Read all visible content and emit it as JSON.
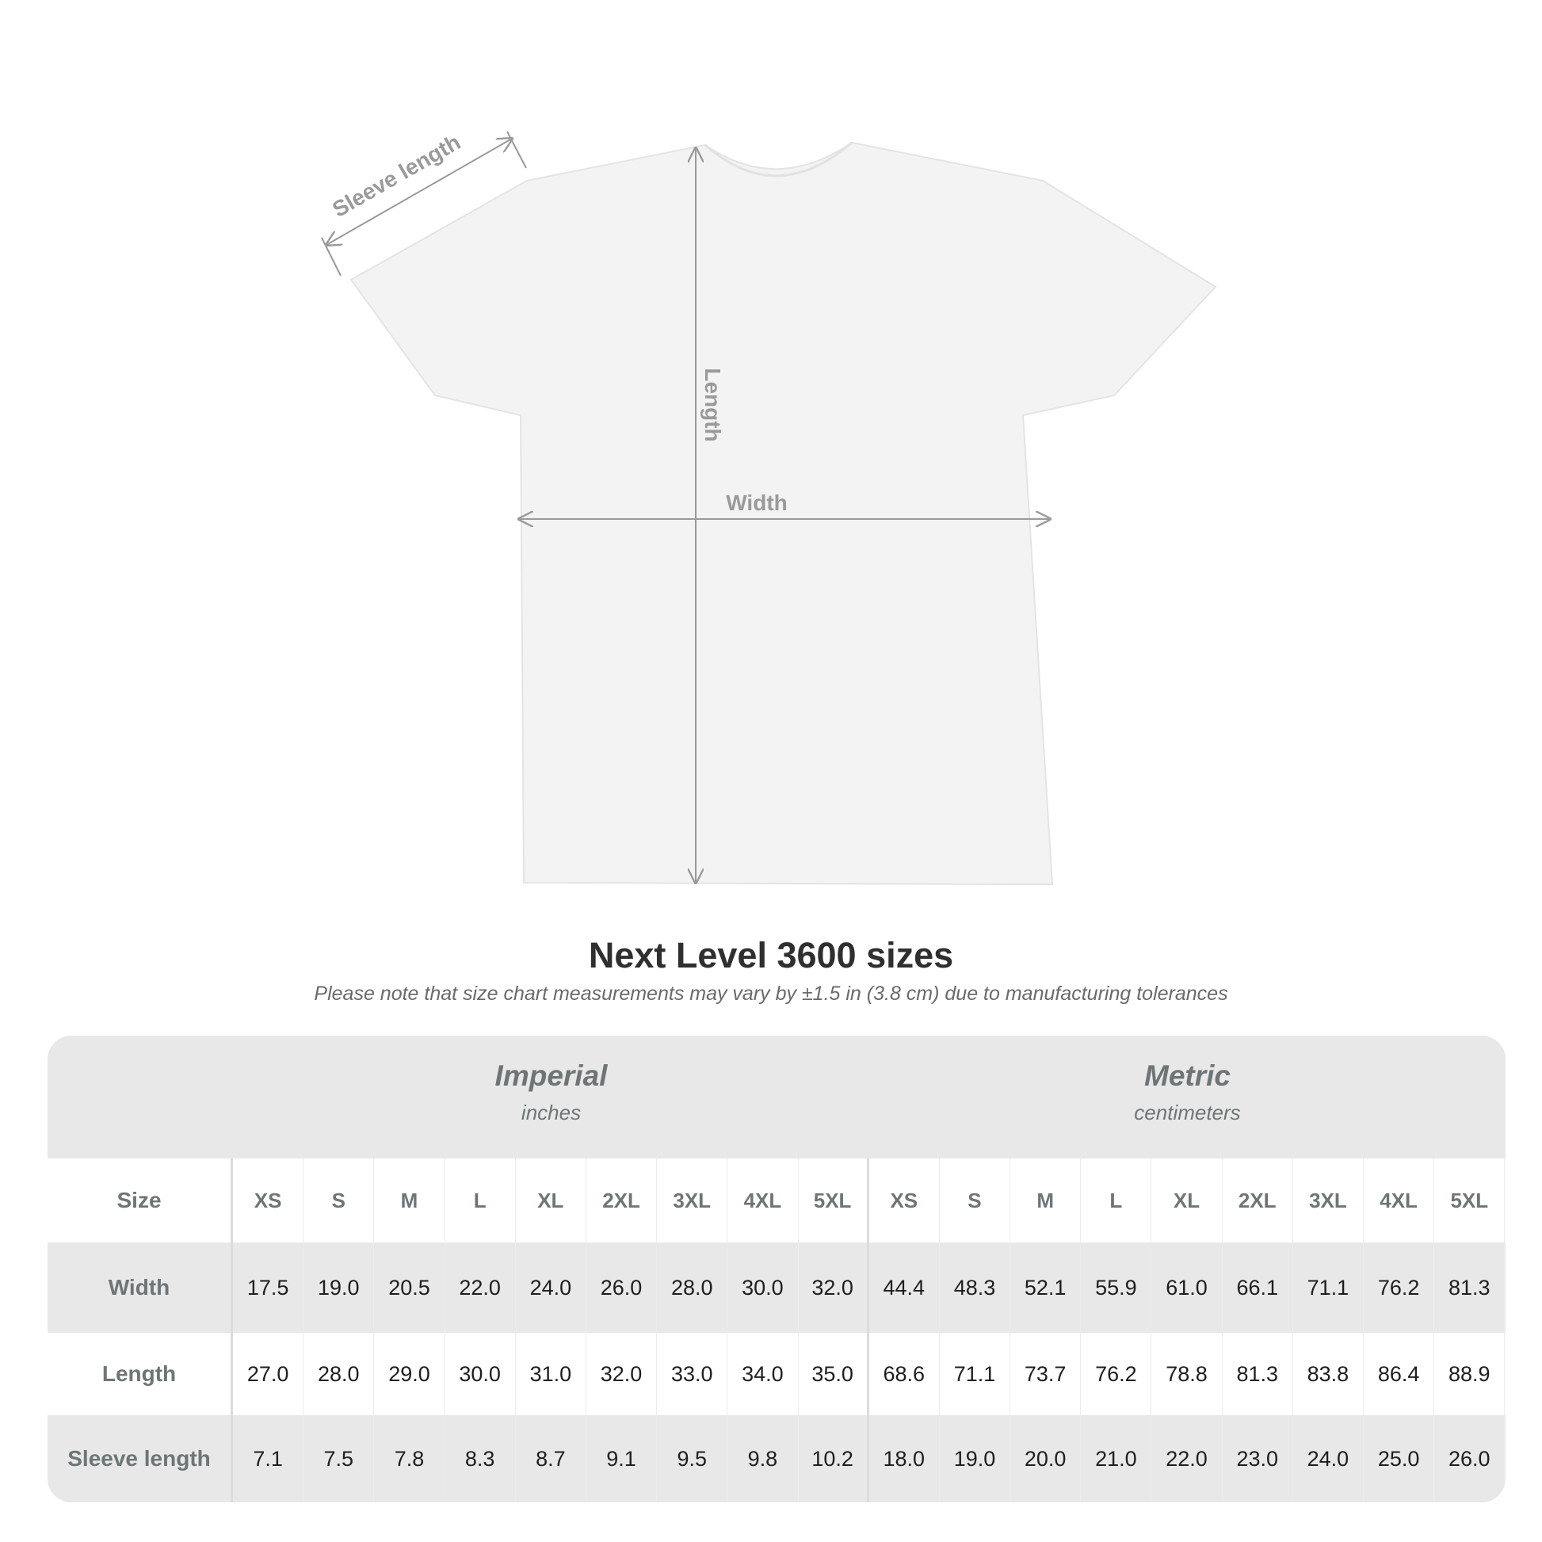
{
  "diagram": {
    "sleeve_label": "Sleeve length",
    "length_label": "Length",
    "width_label": "Width"
  },
  "title": "Next Level 3600 sizes",
  "subtitle": "Please note that size chart measurements may vary by ±1.5 in (3.8 cm) due to manufacturing tolerances",
  "table": {
    "imperial": {
      "name": "Imperial",
      "unit": "inches"
    },
    "metric": {
      "name": "Metric",
      "unit": "centimeters"
    },
    "rows": [
      {
        "label": "Size",
        "imperial": [
          "XS",
          "S",
          "M",
          "L",
          "XL",
          "2XL",
          "3XL",
          "4XL",
          "5XL"
        ],
        "metric": [
          "XS",
          "S",
          "M",
          "L",
          "XL",
          "2XL",
          "3XL",
          "4XL",
          "5XL"
        ]
      },
      {
        "label": "Width",
        "imperial": [
          "17.5",
          "19.0",
          "20.5",
          "22.0",
          "24.0",
          "26.0",
          "28.0",
          "30.0",
          "32.0"
        ],
        "metric": [
          "44.4",
          "48.3",
          "52.1",
          "55.9",
          "61.0",
          "66.1",
          "71.1",
          "76.2",
          "81.3"
        ]
      },
      {
        "label": "Length",
        "imperial": [
          "27.0",
          "28.0",
          "29.0",
          "30.0",
          "31.0",
          "32.0",
          "33.0",
          "34.0",
          "35.0"
        ],
        "metric": [
          "68.6",
          "71.1",
          "73.7",
          "76.2",
          "78.8",
          "81.3",
          "83.8",
          "86.4",
          "88.9"
        ]
      },
      {
        "label": "Sleeve length",
        "imperial": [
          "7.1",
          "7.5",
          "7.8",
          "8.3",
          "8.7",
          "9.1",
          "9.5",
          "9.8",
          "10.2"
        ],
        "metric": [
          "18.0",
          "19.0",
          "20.0",
          "21.0",
          "22.0",
          "23.0",
          "24.0",
          "25.0",
          "26.0"
        ]
      }
    ]
  },
  "colors": {
    "header_text": "#6e7576",
    "table_bg": "#e8e8e8",
    "arrow": "#9a9a9a"
  }
}
